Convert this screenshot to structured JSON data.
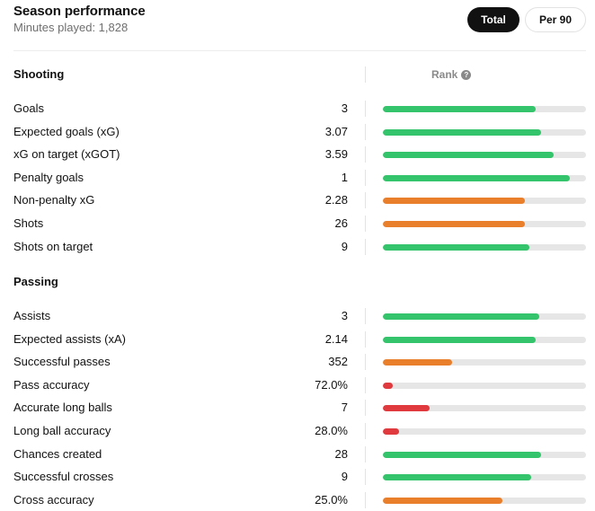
{
  "header": {
    "title": "Season performance",
    "subtitle": "Minutes played: 1,828",
    "toggle_total": "Total",
    "toggle_per90": "Per 90"
  },
  "rank_header": "Rank",
  "colors": {
    "green": "#34c46b",
    "orange": "#ea7f2b",
    "red": "#e0393e",
    "track": "#e6e6e6"
  },
  "sections": [
    {
      "title": "Shooting",
      "rows": [
        {
          "label": "Goals",
          "value": "3",
          "rank": 0.75,
          "color": "green"
        },
        {
          "label": "Expected goals (xG)",
          "value": "3.07",
          "rank": 0.78,
          "color": "green"
        },
        {
          "label": "xG on target (xGOT)",
          "value": "3.59",
          "rank": 0.84,
          "color": "green"
        },
        {
          "label": "Penalty goals",
          "value": "1",
          "rank": 0.92,
          "color": "green"
        },
        {
          "label": "Non-penalty xG",
          "value": "2.28",
          "rank": 0.7,
          "color": "orange"
        },
        {
          "label": "Shots",
          "value": "26",
          "rank": 0.7,
          "color": "orange"
        },
        {
          "label": "Shots on target",
          "value": "9",
          "rank": 0.72,
          "color": "green"
        }
      ]
    },
    {
      "title": "Passing",
      "rows": [
        {
          "label": "Assists",
          "value": "3",
          "rank": 0.77,
          "color": "green"
        },
        {
          "label": "Expected assists (xA)",
          "value": "2.14",
          "rank": 0.75,
          "color": "green"
        },
        {
          "label": "Successful passes",
          "value": "352",
          "rank": 0.34,
          "color": "orange"
        },
        {
          "label": "Pass accuracy",
          "value": "72.0%",
          "rank": 0.05,
          "color": "red"
        },
        {
          "label": "Accurate long balls",
          "value": "7",
          "rank": 0.23,
          "color": "red"
        },
        {
          "label": "Long ball accuracy",
          "value": "28.0%",
          "rank": 0.08,
          "color": "red"
        },
        {
          "label": "Chances created",
          "value": "28",
          "rank": 0.78,
          "color": "green"
        },
        {
          "label": "Successful crosses",
          "value": "9",
          "rank": 0.73,
          "color": "green"
        },
        {
          "label": "Cross accuracy",
          "value": "25.0%",
          "rank": 0.59,
          "color": "orange"
        }
      ]
    }
  ]
}
